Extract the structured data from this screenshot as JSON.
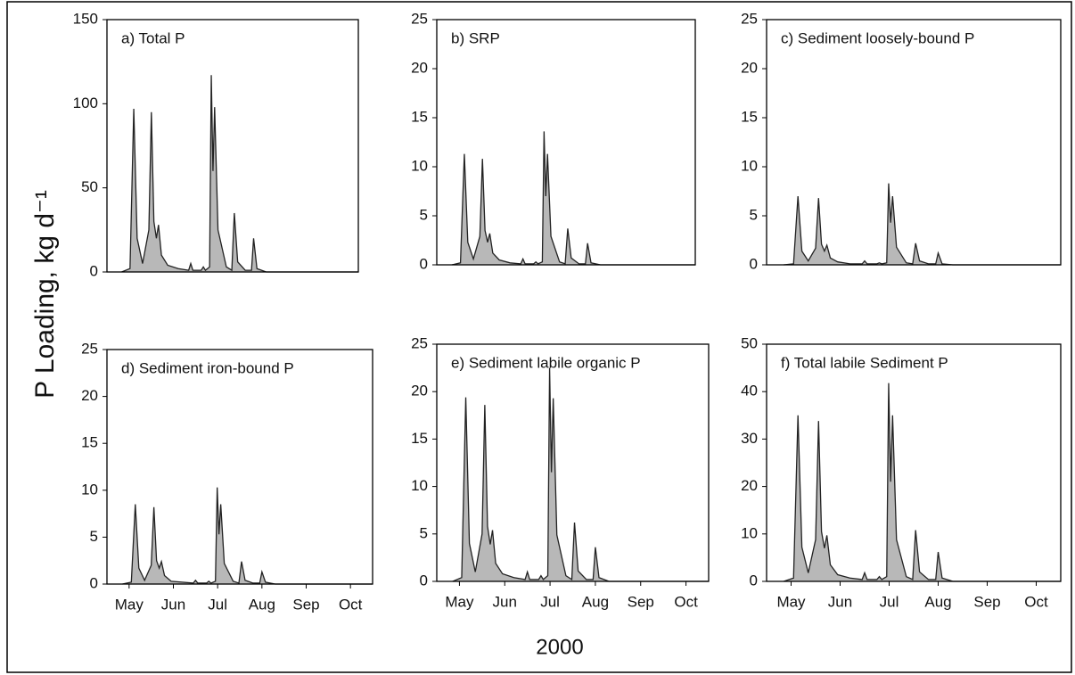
{
  "figure": {
    "y_label": "P Loading, kg d⁻¹",
    "x_label": "2000"
  },
  "chart_data": [
    {
      "type": "area",
      "title": "a) Total P",
      "color": "#b8b8b8",
      "x": [
        0.35,
        0.55,
        0.64,
        0.72,
        0.85,
        1.0,
        1.06,
        1.12,
        1.18,
        1.23,
        1.3,
        1.45,
        1.7,
        1.95,
        2.0,
        2.05,
        2.25,
        2.3,
        2.35,
        2.45,
        2.49,
        2.53,
        2.57,
        2.65,
        2.85,
        2.98,
        3.04,
        3.12,
        3.3,
        3.45,
        3.5,
        3.58,
        3.8,
        6.0
      ],
      "values": [
        0,
        2,
        97,
        20,
        5,
        25,
        95,
        30,
        20,
        28,
        10,
        4,
        2,
        1,
        5,
        1,
        1,
        3,
        1,
        3,
        117,
        60,
        98,
        25,
        3,
        1,
        35,
        6,
        1,
        1,
        20,
        2,
        0,
        0
      ],
      "xlim": [
        0,
        6
      ],
      "ylim": [
        0,
        150
      ],
      "yticks": [
        0,
        50,
        100,
        150
      ]
    },
    {
      "type": "area",
      "title": "b) SRP",
      "color": "#b8b8b8",
      "x": [
        0.35,
        0.55,
        0.64,
        0.72,
        0.85,
        1.0,
        1.06,
        1.12,
        1.18,
        1.23,
        1.3,
        1.45,
        1.7,
        1.95,
        2.0,
        2.05,
        2.25,
        2.3,
        2.35,
        2.45,
        2.49,
        2.53,
        2.57,
        2.65,
        2.85,
        2.98,
        3.04,
        3.12,
        3.3,
        3.45,
        3.5,
        3.58,
        3.8,
        6.0
      ],
      "values": [
        0,
        0.2,
        11.3,
        2.3,
        0.6,
        2.9,
        10.8,
        3.5,
        2.3,
        3.2,
        1.2,
        0.5,
        0.2,
        0.1,
        0.6,
        0.1,
        0.1,
        0.3,
        0.1,
        0.3,
        13.6,
        7,
        11.3,
        2.9,
        0.3,
        0.1,
        3.7,
        0.7,
        0.1,
        0.1,
        2.2,
        0.2,
        0,
        0
      ],
      "xlim": [
        0,
        6
      ],
      "ylim": [
        0,
        25
      ],
      "yticks": [
        0,
        5,
        10,
        15,
        20,
        25
      ]
    },
    {
      "type": "area",
      "title": "c) Sediment loosely-bound P",
      "color": "#b8b8b8",
      "x": [
        0.35,
        0.55,
        0.64,
        0.72,
        0.85,
        1.0,
        1.06,
        1.12,
        1.18,
        1.23,
        1.3,
        1.45,
        1.7,
        1.95,
        2.0,
        2.05,
        2.25,
        2.3,
        2.35,
        2.45,
        2.49,
        2.53,
        2.57,
        2.65,
        2.85,
        2.98,
        3.04,
        3.12,
        3.3,
        3.45,
        3.5,
        3.58,
        3.8,
        6.0
      ],
      "values": [
        0,
        0.1,
        7,
        1.4,
        0.4,
        1.7,
        6.8,
        2.1,
        1.4,
        2,
        0.7,
        0.3,
        0.1,
        0.1,
        0.4,
        0.1,
        0.1,
        0.2,
        0.1,
        0.2,
        8.3,
        4.3,
        7,
        1.8,
        0.2,
        0.1,
        2.2,
        0.4,
        0.1,
        0.1,
        1.2,
        0.1,
        0,
        0
      ],
      "xlim": [
        0,
        6
      ],
      "ylim": [
        0,
        25
      ],
      "yticks": [
        0,
        5,
        10,
        15,
        20,
        25
      ]
    },
    {
      "type": "area",
      "title": "d) Sediment iron-bound P",
      "color": "#b8b8b8",
      "x": [
        0.35,
        0.55,
        0.64,
        0.72,
        0.85,
        1.0,
        1.06,
        1.12,
        1.18,
        1.23,
        1.3,
        1.45,
        1.7,
        1.95,
        2.0,
        2.05,
        2.25,
        2.3,
        2.35,
        2.45,
        2.49,
        2.53,
        2.57,
        2.65,
        2.85,
        2.98,
        3.04,
        3.12,
        3.3,
        3.45,
        3.5,
        3.58,
        3.8,
        6.0
      ],
      "values": [
        0,
        0.2,
        8.5,
        1.7,
        0.4,
        2,
        8.2,
        2.5,
        1.7,
        2.4,
        0.9,
        0.3,
        0.2,
        0.1,
        0.4,
        0.1,
        0.1,
        0.3,
        0.1,
        0.3,
        10.3,
        5.3,
        8.5,
        2.2,
        0.3,
        0.1,
        2.4,
        0.4,
        0.1,
        0.1,
        1.3,
        0.2,
        0,
        0
      ],
      "xlim": [
        0,
        6
      ],
      "ylim": [
        0,
        25
      ],
      "yticks": [
        0,
        5,
        10,
        15,
        20,
        25
      ],
      "xticks": [
        {
          "value": 0.5,
          "label": "May"
        },
        {
          "value": 1.5,
          "label": "Jun"
        },
        {
          "value": 2.5,
          "label": "Jul"
        },
        {
          "value": 3.5,
          "label": "Aug"
        },
        {
          "value": 4.5,
          "label": "Sep"
        },
        {
          "value": 5.5,
          "label": "Oct"
        }
      ]
    },
    {
      "type": "area",
      "title": "e) Sediment labile organic P",
      "color": "#b8b8b8",
      "x": [
        0.35,
        0.55,
        0.64,
        0.72,
        0.85,
        1.0,
        1.06,
        1.12,
        1.18,
        1.23,
        1.3,
        1.45,
        1.7,
        1.95,
        2.0,
        2.05,
        2.25,
        2.3,
        2.35,
        2.45,
        2.49,
        2.53,
        2.57,
        2.65,
        2.85,
        2.98,
        3.04,
        3.12,
        3.3,
        3.45,
        3.5,
        3.58,
        3.8,
        6.0
      ],
      "values": [
        0,
        0.4,
        19.4,
        4,
        1,
        5,
        18.6,
        5.8,
        3.9,
        5.4,
        1.9,
        0.8,
        0.4,
        0.2,
        1,
        0.2,
        0.2,
        0.6,
        0.2,
        0.6,
        22.5,
        11.5,
        19.3,
        4.9,
        0.6,
        0.2,
        6.2,
        1.1,
        0.2,
        0.2,
        3.6,
        0.4,
        0,
        0
      ],
      "xlim": [
        0,
        6
      ],
      "ylim": [
        0,
        25
      ],
      "yticks": [
        0,
        5,
        10,
        15,
        20,
        25
      ],
      "xticks": [
        {
          "value": 0.5,
          "label": "May"
        },
        {
          "value": 1.5,
          "label": "Jun"
        },
        {
          "value": 2.5,
          "label": "Jul"
        },
        {
          "value": 3.5,
          "label": "Aug"
        },
        {
          "value": 4.5,
          "label": "Sep"
        },
        {
          "value": 5.5,
          "label": "Oct"
        }
      ]
    },
    {
      "type": "area",
      "title": "f) Total labile Sediment P",
      "color": "#b8b8b8",
      "x": [
        0.35,
        0.55,
        0.64,
        0.72,
        0.85,
        1.0,
        1.06,
        1.12,
        1.18,
        1.23,
        1.3,
        1.45,
        1.7,
        1.95,
        2.0,
        2.05,
        2.25,
        2.3,
        2.35,
        2.45,
        2.49,
        2.53,
        2.57,
        2.65,
        2.85,
        2.98,
        3.04,
        3.12,
        3.3,
        3.45,
        3.5,
        3.58,
        3.8,
        6.0
      ],
      "values": [
        0,
        0.7,
        35,
        7.2,
        1.8,
        8.8,
        33.8,
        10.5,
        7,
        9.7,
        3.5,
        1.4,
        0.7,
        0.4,
        1.8,
        0.4,
        0.4,
        1,
        0.4,
        1,
        41.8,
        21,
        35,
        8.8,
        1,
        0.4,
        10.8,
        2,
        0.4,
        0.4,
        6.2,
        0.7,
        0,
        0
      ],
      "xlim": [
        0,
        6
      ],
      "ylim": [
        0,
        50
      ],
      "yticks": [
        0,
        10,
        20,
        30,
        40,
        50
      ],
      "xticks": [
        {
          "value": 0.5,
          "label": "May"
        },
        {
          "value": 1.5,
          "label": "Jun"
        },
        {
          "value": 2.5,
          "label": "Jul"
        },
        {
          "value": 3.5,
          "label": "Aug"
        },
        {
          "value": 4.5,
          "label": "Sep"
        },
        {
          "value": 5.5,
          "label": "Oct"
        }
      ]
    }
  ]
}
